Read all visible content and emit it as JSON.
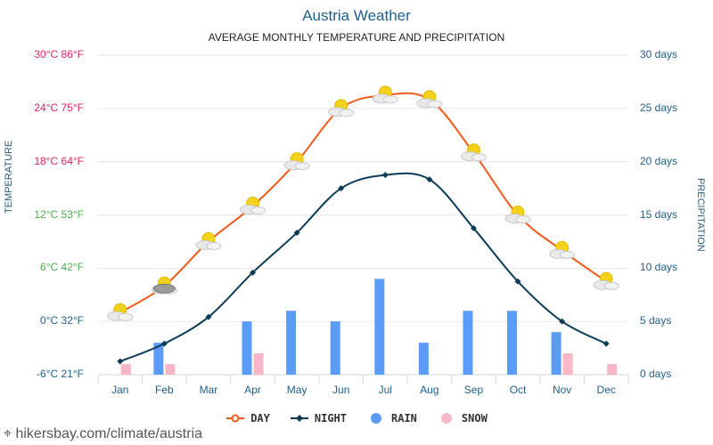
{
  "title": "Austria Weather",
  "subtitle": "AVERAGE MONTHLY TEMPERATURE AND PRECIPITATION",
  "y_left_title": "TEMPERATURE",
  "y_right_title": "PRECIPITATION",
  "left_ticks": [
    {
      "label": "30°C 86°F",
      "value": 30,
      "color": "#e0245e"
    },
    {
      "label": "24°C 75°F",
      "value": 24,
      "color": "#e0245e"
    },
    {
      "label": "18°C 64°F",
      "value": 18,
      "color": "#e0245e"
    },
    {
      "label": "12°C 53°F",
      "value": 12,
      "color": "#4caf50"
    },
    {
      "label": "6°C 42°F",
      "value": 6,
      "color": "#4caf50"
    },
    {
      "label": "0°C 32°F",
      "value": 0,
      "color": "#1f5f8b"
    },
    {
      "label": "-6°C 21°F",
      "value": -6,
      "color": "#1f5f8b"
    }
  ],
  "right_ticks": [
    {
      "label": "30 days",
      "value": 30
    },
    {
      "label": "25 days",
      "value": 25
    },
    {
      "label": "20 days",
      "value": 20
    },
    {
      "label": "15 days",
      "value": 15
    },
    {
      "label": "10 days",
      "value": 10
    },
    {
      "label": "5 days",
      "value": 5
    },
    {
      "label": "0 days",
      "value": 0
    }
  ],
  "legend": [
    {
      "label": "DAY",
      "color": "#f05a1a",
      "kind": "line"
    },
    {
      "label": "NIGHT",
      "color": "#0d3d56",
      "kind": "line-diamond"
    },
    {
      "label": "RAIN",
      "color": "#5b9cf6",
      "kind": "dot"
    },
    {
      "label": "SNOW",
      "color": "#f7b7c4",
      "kind": "dot"
    }
  ],
  "footer": "hikersbay.com/climate/austria",
  "chart_data": {
    "type": "line",
    "categories": [
      "Jan",
      "Feb",
      "Mar",
      "Apr",
      "May",
      "Jun",
      "Jul",
      "Aug",
      "Sep",
      "Oct",
      "Nov",
      "Dec"
    ],
    "series": [
      {
        "name": "DAY",
        "axis": "temperature",
        "unit": "°C",
        "color": "#f05a1a",
        "values": [
          1,
          4,
          9,
          13,
          18,
          24,
          25.5,
          25,
          19,
          12,
          8,
          4.5
        ]
      },
      {
        "name": "NIGHT",
        "axis": "temperature",
        "unit": "°C",
        "color": "#0d3d56",
        "values": [
          -4.5,
          -2.5,
          0.5,
          5.5,
          10,
          15,
          16.5,
          16,
          10.5,
          4.5,
          0,
          -2.5
        ]
      },
      {
        "name": "RAIN",
        "axis": "precipitation",
        "unit": "days",
        "type": "bar",
        "color": "#5b9cf6",
        "values": [
          0,
          3,
          0,
          5,
          6,
          5,
          9,
          3,
          6,
          6,
          4,
          0
        ]
      },
      {
        "name": "SNOW",
        "axis": "precipitation",
        "unit": "days",
        "type": "bar",
        "color": "#f7b7c4",
        "values": [
          1,
          1,
          0,
          2,
          0,
          0,
          0,
          0,
          0,
          0,
          2,
          1
        ]
      }
    ],
    "y_left_range": [
      -6,
      30
    ],
    "y_right_range": [
      0,
      30
    ],
    "grid": true,
    "legend_position": "bottom"
  }
}
